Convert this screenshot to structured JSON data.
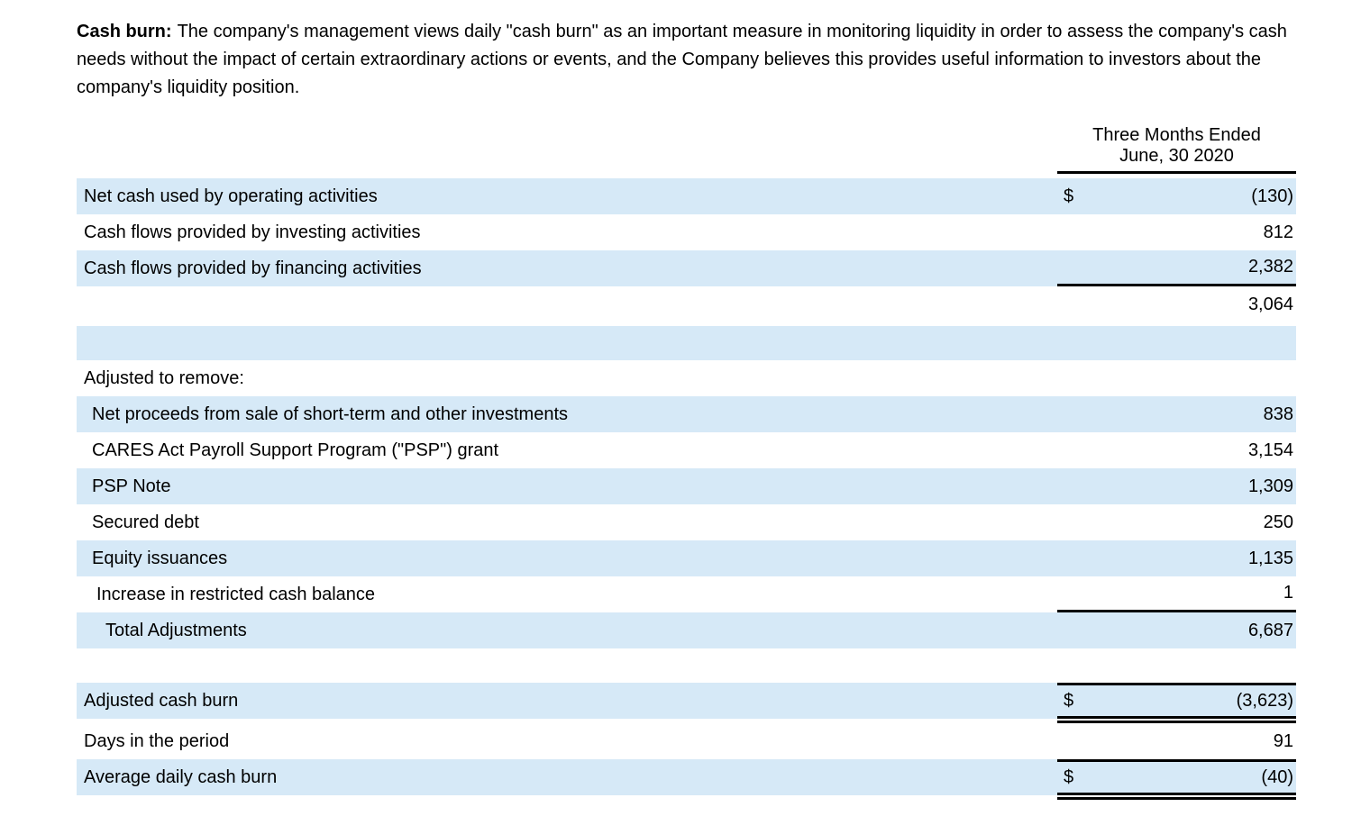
{
  "intro": {
    "lead": "Cash burn:",
    "text": "The company's management views daily \"cash burn\" as an important measure in monitoring liquidity in order to assess the company's cash needs without the impact of certain extraordinary actions or events, and the Company believes this provides useful information to investors about the company's liquidity position."
  },
  "table": {
    "period_header": {
      "line1": "Three Months Ended",
      "line2": "June, 30 2020"
    },
    "rows": [
      {
        "label": "Net cash used by operating activities",
        "currency": "$",
        "value": "(130)"
      },
      {
        "label": "Cash flows provided by investing activities",
        "value": "812"
      },
      {
        "label": "Cash flows provided by financing activities",
        "value": "2,382"
      },
      {
        "label": "",
        "value": "3,064"
      },
      {
        "label": "",
        "value": ""
      },
      {
        "label": "Adjusted to remove:",
        "value": ""
      },
      {
        "label": "Net proceeds from sale of short-term and other investments",
        "value": "838"
      },
      {
        "label": "CARES Act Payroll Support Program (\"PSP\") grant",
        "value": "3,154"
      },
      {
        "label": "PSP Note",
        "value": "1,309"
      },
      {
        "label": "Secured debt",
        "value": "250"
      },
      {
        "label": "Equity issuances",
        "value": "1,135"
      },
      {
        "label": "Increase in restricted cash balance",
        "value": "1"
      },
      {
        "label": "Total Adjustments",
        "value": "6,687"
      },
      {
        "label": "Adjusted cash burn",
        "currency": "$",
        "value": "(3,623)"
      },
      {
        "label": "Days in the period",
        "value": "91"
      },
      {
        "label": "Average daily cash burn",
        "currency": "$",
        "value": "(40)"
      }
    ]
  },
  "colors": {
    "row_highlight": "#D6E9F7",
    "rule": "#000000",
    "text": "#000000",
    "background": "#FFFFFF"
  }
}
